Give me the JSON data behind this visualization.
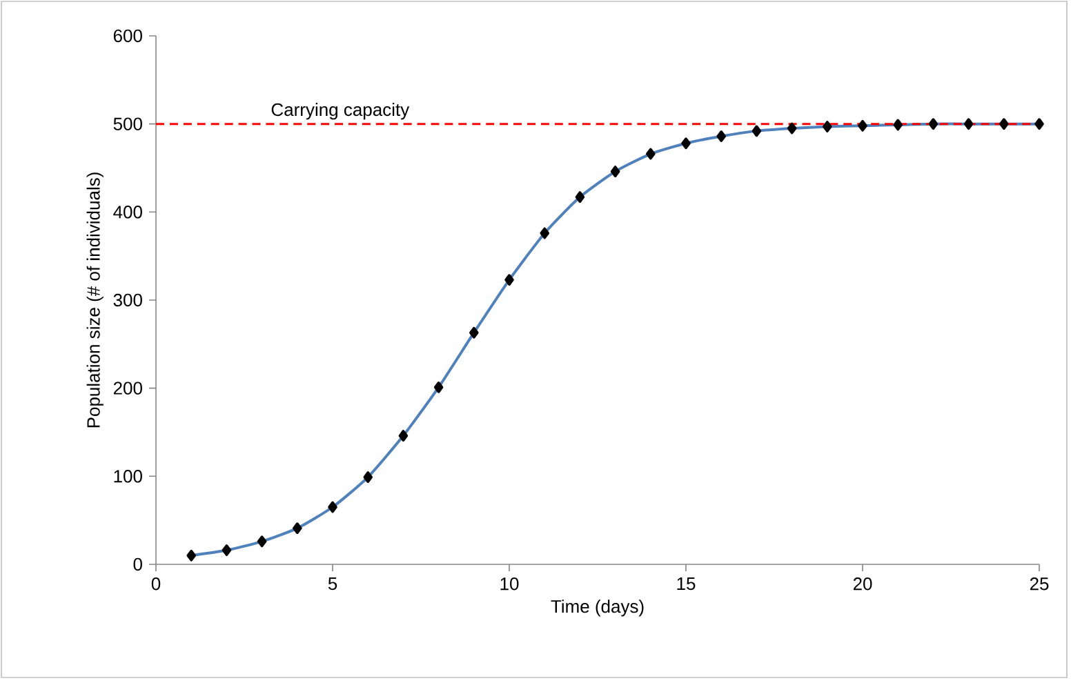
{
  "chart_data": {
    "type": "line",
    "xlabel": "Time (days)",
    "ylabel": "Population size (# of individuals)",
    "x": [
      1,
      2,
      3,
      4,
      5,
      6,
      7,
      8,
      9,
      10,
      11,
      12,
      13,
      14,
      15,
      16,
      17,
      18,
      19,
      20,
      21,
      22,
      23,
      24,
      25
    ],
    "series": [
      {
        "color": "#4f81bd",
        "values": [
          10,
          16,
          26,
          41,
          65,
          99,
          146,
          201,
          263,
          323,
          376,
          417,
          446,
          466,
          478,
          486,
          492,
          495,
          497,
          498,
          499,
          500,
          500,
          500,
          500
        ]
      }
    ],
    "marker": "diamond",
    "line_style": "solid",
    "grid": false,
    "xlim": [
      0,
      25
    ],
    "ylim": [
      0,
      600
    ],
    "xticks": [
      0,
      5,
      10,
      15,
      20,
      25
    ],
    "yticks": [
      0,
      100,
      200,
      300,
      400,
      500,
      600
    ],
    "ref_lines": [
      {
        "axis": "y",
        "value": 500,
        "label": "Carrying capacity",
        "color": "#ff0000",
        "line_style": "dashed"
      }
    ]
  }
}
